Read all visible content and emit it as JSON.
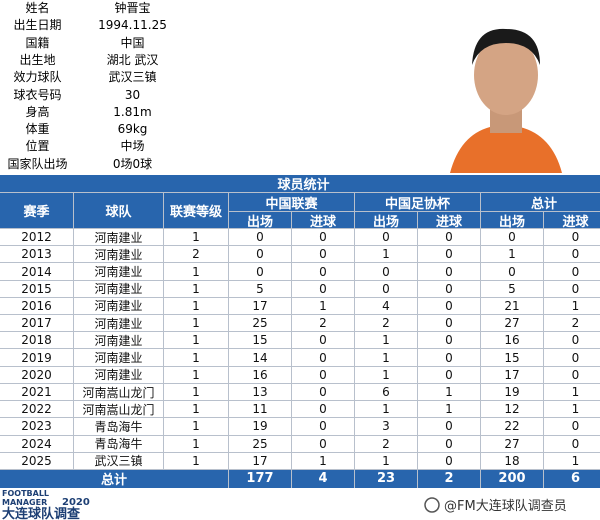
{
  "profile": [
    {
      "label": "姓名",
      "value": "钟晋宝"
    },
    {
      "label": "出生日期",
      "value": "1994.11.25"
    },
    {
      "label": "国籍",
      "value": "中国"
    },
    {
      "label": "出生地",
      "value": "湖北 武汉"
    },
    {
      "label": "效力球队",
      "value": "武汉三镇"
    },
    {
      "label": "球衣号码",
      "value": "30"
    },
    {
      "label": "身高",
      "value": "1.81m"
    },
    {
      "label": "体重",
      "value": "69kg"
    },
    {
      "label": "位置",
      "value": "中场"
    },
    {
      "label": "国家队出场",
      "value": "0场0球"
    }
  ],
  "table": {
    "title": "球员统计",
    "headers": [
      "赛季",
      "球队",
      "联赛等级"
    ],
    "groups": [
      "中国联赛",
      "中国足协杯",
      "总计"
    ],
    "subheaders": [
      "出场",
      "进球",
      "出场",
      "进球",
      "出场",
      "进球"
    ],
    "rows": [
      [
        "2012",
        "河南建业",
        1,
        0,
        0,
        0,
        0,
        0,
        0
      ],
      [
        "2013",
        "河南建业",
        2,
        0,
        0,
        1,
        0,
        1,
        0
      ],
      [
        "2014",
        "河南建业",
        1,
        0,
        0,
        0,
        0,
        0,
        0
      ],
      [
        "2015",
        "河南建业",
        1,
        5,
        0,
        0,
        0,
        5,
        0
      ],
      [
        "2016",
        "河南建业",
        1,
        17,
        1,
        4,
        0,
        21,
        1
      ],
      [
        "2017",
        "河南建业",
        1,
        25,
        2,
        2,
        0,
        27,
        2
      ],
      [
        "2018",
        "河南建业",
        1,
        15,
        0,
        1,
        0,
        16,
        0
      ],
      [
        "2019",
        "河南建业",
        1,
        14,
        0,
        1,
        0,
        15,
        0
      ],
      [
        "2020",
        "河南建业",
        1,
        16,
        0,
        1,
        0,
        17,
        0
      ],
      [
        "2021",
        "河南嵩山龙门",
        1,
        13,
        0,
        6,
        1,
        19,
        1
      ],
      [
        "2022",
        "河南嵩山龙门",
        1,
        11,
        0,
        1,
        1,
        12,
        1
      ],
      [
        "2023",
        "青岛海牛",
        1,
        19,
        0,
        3,
        0,
        22,
        0
      ],
      [
        "2024",
        "青岛海牛",
        1,
        25,
        0,
        2,
        0,
        27,
        0
      ],
      [
        "2025",
        "武汉三镇",
        1,
        17,
        1,
        1,
        0,
        18,
        1
      ]
    ],
    "total_label": "总计",
    "totals": [
      177,
      4,
      23,
      2,
      200,
      6
    ]
  },
  "footer": {
    "logo_top": "FOOTBALL",
    "logo_mid": "MANAGER",
    "logo_year": "2020",
    "logo_bottom": "大连球队调查",
    "credit": "@FM大连球队调查员"
  }
}
